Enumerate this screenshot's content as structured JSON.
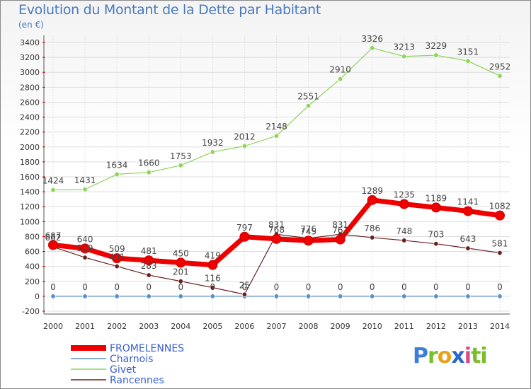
{
  "header": {
    "title": "Evolution du Montant de la Dette par Habitant",
    "subtitle": "(en €)"
  },
  "logo": {
    "text": "Proxiti",
    "parts": [
      "P",
      "r",
      "o",
      "x",
      "i",
      "ti"
    ]
  },
  "chart_data": {
    "type": "line",
    "title": "Evolution du Montant de la Dette par Habitant",
    "ylabel": "(en €)",
    "xlabel": "",
    "x": [
      "2000",
      "2001",
      "2002",
      "2003",
      "2004",
      "2005",
      "2006",
      "2007",
      "2008",
      "2009",
      "2010",
      "2011",
      "2012",
      "2013",
      "2014"
    ],
    "ylim": [
      -200,
      3400
    ],
    "yticks": [
      -200,
      0,
      200,
      400,
      600,
      800,
      1000,
      1200,
      1400,
      1600,
      1800,
      2000,
      2200,
      2400,
      2600,
      2800,
      3000,
      3200,
      3400
    ],
    "grid": true,
    "legend_position": "bottom-left",
    "series": [
      {
        "name": "FROMELENNES",
        "color": "#ee0000",
        "width": 7,
        "values": [
          687,
          640,
          509,
          481,
          450,
          419,
          797,
          768,
          745,
          761,
          1289,
          1235,
          1189,
          1141,
          1082
        ]
      },
      {
        "name": "Charnois",
        "color": "#5b8fc9",
        "width": 1.2,
        "values": [
          0,
          0,
          0,
          0,
          0,
          0,
          0,
          0,
          0,
          0,
          0,
          0,
          0,
          0,
          0
        ]
      },
      {
        "name": "Givet",
        "color": "#8ed35a",
        "width": 1.2,
        "values": [
          1424,
          1431,
          1634,
          1660,
          1753,
          1932,
          2012,
          2148,
          2551,
          2910,
          3326,
          3213,
          3229,
          3151,
          2952
        ]
      },
      {
        "name": "Rancennes",
        "color": "#6b2020",
        "width": 1.2,
        "values": [
          662,
          519,
          401,
          283,
          201,
          116,
          25,
          831,
          776,
          831,
          786,
          748,
          703,
          643,
          581
        ]
      }
    ]
  }
}
